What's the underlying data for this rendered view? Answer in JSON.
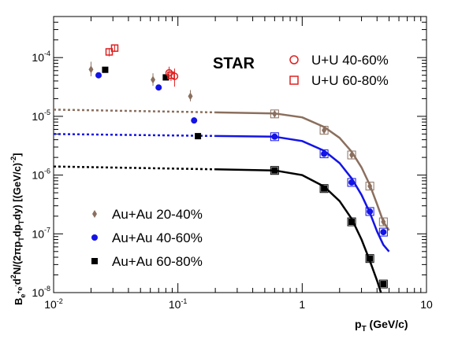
{
  "chart_data": {
    "type": "scatter",
    "title": "",
    "label_text": "STAR",
    "xlabel": {
      "main": "p",
      "sub": "T",
      "rest": " (GeV/c)"
    },
    "ylabel": "B_{e+e-} d²N/(2π p_T dp_T dy) [(GeV/c)^-2]",
    "x_scale": "log",
    "y_scale": "log",
    "xlim": [
      0.01,
      10
    ],
    "ylim": [
      1e-08,
      0.0005
    ],
    "x_ticks": [
      {
        "v": 0.01,
        "base": "10",
        "exp": "-2"
      },
      {
        "v": 0.1,
        "base": "10",
        "exp": "-1"
      },
      {
        "v": 1,
        "base": "1",
        "exp": ""
      },
      {
        "v": 10,
        "base": "10",
        "exp": ""
      }
    ],
    "y_ticks": [
      {
        "v": 1e-08,
        "base": "10",
        "exp": "-8"
      },
      {
        "v": 1e-07,
        "base": "10",
        "exp": "-7"
      },
      {
        "v": 1e-06,
        "base": "10",
        "exp": "-6"
      },
      {
        "v": 1e-05,
        "base": "10",
        "exp": "-5"
      },
      {
        "v": 0.0001,
        "base": "10",
        "exp": "-4"
      }
    ],
    "grid": false,
    "legend_placement": [
      "top-right",
      "bottom-left"
    ],
    "series": [
      {
        "key": "auau2040",
        "name": "Au+Au 20-40%",
        "legend_group": "bottom-left",
        "marker": "diamond",
        "color": "#8b6f5e",
        "points": [
          {
            "x": 0.02,
            "y": 6.3e-05,
            "ylo": 4.8e-05,
            "yhi": 8.5e-05
          },
          {
            "x": 0.063,
            "y": 4.2e-05,
            "ylo": 3.3e-05,
            "yhi": 5.4e-05
          },
          {
            "x": 0.126,
            "y": 2.2e-05,
            "ylo": 1.8e-05,
            "yhi": 2.8e-05
          },
          {
            "x": 0.6,
            "y": 1.1e-05
          },
          {
            "x": 1.5,
            "y": 5.8e-06
          },
          {
            "x": 2.5,
            "y": 2.2e-06
          },
          {
            "x": 3.5,
            "y": 6.5e-07
          },
          {
            "x": 4.5,
            "y": 1.6e-07
          }
        ],
        "fit_points": [
          {
            "x": 0.01,
            "y": 1.3e-05
          },
          {
            "x": 0.6,
            "y": 1.12e-05
          },
          {
            "x": 1.0,
            "y": 9.6e-06
          },
          {
            "x": 1.5,
            "y": 6.6e-06
          },
          {
            "x": 2.0,
            "y": 4.3e-06
          },
          {
            "x": 2.5,
            "y": 2.5e-06
          },
          {
            "x": 3.0,
            "y": 1.35e-06
          },
          {
            "x": 3.5,
            "y": 6.8e-07
          },
          {
            "x": 4.0,
            "y": 3.2e-07
          },
          {
            "x": 4.5,
            "y": 1.6e-07
          },
          {
            "x": 5.0,
            "y": 1.15e-07
          }
        ]
      },
      {
        "key": "auau4060",
        "name": "Au+Au 40-60%",
        "legend_group": "bottom-left",
        "marker": "circle",
        "color": "#1414e6",
        "points": [
          {
            "x": 0.023,
            "y": 5e-05
          },
          {
            "x": 0.07,
            "y": 3.1e-05
          },
          {
            "x": 0.135,
            "y": 8.5e-06
          },
          {
            "x": 0.6,
            "y": 4.5e-06
          },
          {
            "x": 1.5,
            "y": 2.3e-06
          },
          {
            "x": 2.5,
            "y": 7.5e-07
          },
          {
            "x": 3.5,
            "y": 2.4e-07
          },
          {
            "x": 4.5,
            "y": 1.07e-07
          }
        ],
        "fit_points": [
          {
            "x": 0.01,
            "y": 5e-06
          },
          {
            "x": 0.6,
            "y": 4.5e-06
          },
          {
            "x": 1.0,
            "y": 3.8e-06
          },
          {
            "x": 1.5,
            "y": 2.6e-06
          },
          {
            "x": 2.0,
            "y": 1.6e-06
          },
          {
            "x": 2.5,
            "y": 8.8e-07
          },
          {
            "x": 3.0,
            "y": 4.6e-07
          },
          {
            "x": 3.5,
            "y": 2.3e-07
          },
          {
            "x": 4.0,
            "y": 1.1e-07
          },
          {
            "x": 4.5,
            "y": 6.5e-08
          },
          {
            "x": 5.0,
            "y": 5e-08
          }
        ]
      },
      {
        "key": "auau6080",
        "name": "Au+Au 60-80%",
        "legend_group": "bottom-left",
        "marker": "square",
        "color": "#000000",
        "points": [
          {
            "x": 0.026,
            "y": 6.2e-05
          },
          {
            "x": 0.08,
            "y": 4.6e-05
          },
          {
            "x": 0.145,
            "y": 4.6e-06
          },
          {
            "x": 0.6,
            "y": 1.2e-06
          },
          {
            "x": 1.5,
            "y": 5.9e-07
          },
          {
            "x": 2.5,
            "y": 1.6e-07
          },
          {
            "x": 3.5,
            "y": 3.8e-08
          },
          {
            "x": 4.5,
            "y": 1.4e-08
          }
        ],
        "fit_points": [
          {
            "x": 0.01,
            "y": 1.4e-06
          },
          {
            "x": 0.6,
            "y": 1.2e-06
          },
          {
            "x": 1.0,
            "y": 1e-06
          },
          {
            "x": 1.5,
            "y": 6.4e-07
          },
          {
            "x": 2.0,
            "y": 3.6e-07
          },
          {
            "x": 2.5,
            "y": 1.8e-07
          },
          {
            "x": 3.0,
            "y": 8e-08
          },
          {
            "x": 3.5,
            "y": 3.5e-08
          },
          {
            "x": 4.0,
            "y": 1.6e-08
          },
          {
            "x": 4.3,
            "y": 1e-08
          }
        ]
      },
      {
        "key": "uu4060",
        "name": "U+U 40-60%",
        "legend_group": "top-right",
        "marker": "open-circle",
        "color": "#e02020",
        "points": [
          {
            "x": 0.085,
            "y": 5.5e-05,
            "ylo": 4.5e-05,
            "yhi": 7e-05
          },
          {
            "x": 0.094,
            "y": 4.8e-05,
            "ylo": 3.2e-05,
            "yhi": 6.5e-05
          }
        ]
      },
      {
        "key": "uu6080",
        "name": "U+U 60-80%",
        "legend_group": "top-right",
        "marker": "open-square",
        "color": "#e02020",
        "points": [
          {
            "x": 0.028,
            "y": 0.000125,
            "ylo": 0.000105,
            "yhi": 0.000145
          },
          {
            "x": 0.031,
            "y": 0.000145,
            "ylo": 0.000125,
            "yhi": 0.000165
          },
          {
            "x": 0.088,
            "y": 5e-05,
            "ylo": 4e-05,
            "yhi": 6.2e-05
          }
        ]
      }
    ]
  }
}
